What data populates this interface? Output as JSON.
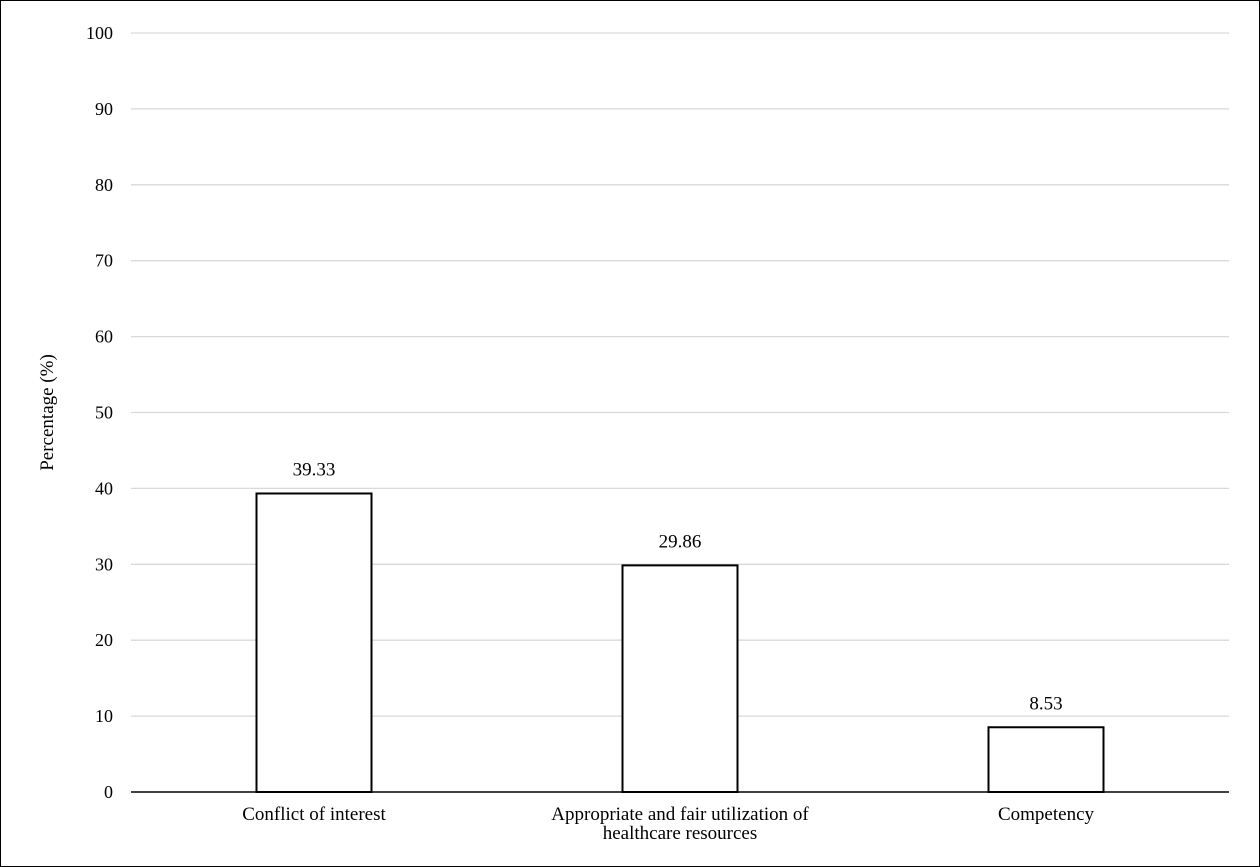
{
  "chart_data": {
    "type": "bar",
    "categories": [
      [
        "Conflict of interest"
      ],
      [
        "Appropriate and fair utilization of",
        "healthcare resources"
      ],
      [
        "Competency"
      ]
    ],
    "values": [
      39.33,
      29.86,
      8.53
    ],
    "data_labels": [
      "39.33",
      "29.86",
      "8.53"
    ],
    "title": "",
    "xlabel": "",
    "ylabel": "Percentage (%)",
    "ylim": [
      0,
      100
    ],
    "yticks": [
      0,
      10,
      20,
      30,
      40,
      50,
      60,
      70,
      80,
      90,
      100
    ],
    "grid": true,
    "legend": "none",
    "colors": {
      "bar_fill": "#ffffff",
      "bar_stroke": "#000000",
      "grid": "#d9d9d9",
      "axis": "#000000",
      "text": "#000000"
    }
  }
}
